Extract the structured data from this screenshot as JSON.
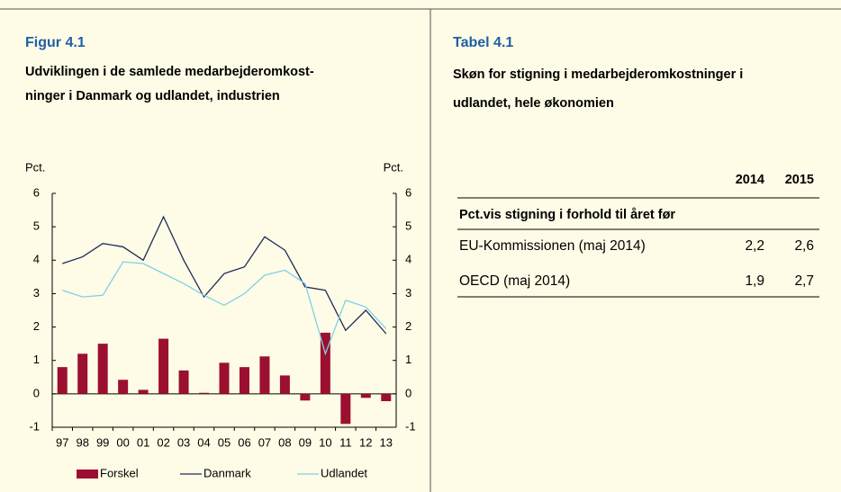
{
  "chart_data": {
    "type": "combo",
    "title": "Figur 4.1",
    "subtitle": [
      "Udviklingen i de samlede medarbejderomkost-",
      "ninger i Danmark og udlandet, industrien"
    ],
    "ylabel": "Pct.",
    "y2label": "Pct.",
    "categories": [
      "97",
      "98",
      "99",
      "00",
      "01",
      "02",
      "03",
      "04",
      "05",
      "06",
      "07",
      "08",
      "09",
      "10",
      "11",
      "12",
      "13"
    ],
    "series": [
      {
        "name": "Forskel",
        "type": "bar",
        "color": "#9b1030",
        "values": [
          0.8,
          1.2,
          1.5,
          0.42,
          0.12,
          1.65,
          0.7,
          0.03,
          0.93,
          0.8,
          1.12,
          0.55,
          -0.2,
          1.83,
          -0.9,
          -0.12,
          -0.22
        ]
      },
      {
        "name": "Danmark",
        "type": "line",
        "color": "#1f2a5a",
        "values": [
          3.9,
          4.1,
          4.5,
          4.4,
          4.0,
          5.3,
          4.0,
          2.9,
          3.6,
          3.8,
          4.7,
          4.3,
          3.2,
          3.1,
          1.9,
          2.5,
          1.8
        ]
      },
      {
        "name": "Udlandet",
        "type": "line",
        "color": "#7fd0e8",
        "values": [
          3.1,
          2.9,
          2.95,
          3.95,
          3.9,
          3.6,
          3.3,
          2.95,
          2.65,
          3.0,
          3.55,
          3.7,
          3.3,
          1.2,
          2.8,
          2.6,
          1.95
        ]
      }
    ],
    "ylim": [
      -1,
      6
    ],
    "yticks": [
      -1,
      0,
      1,
      2,
      3,
      4,
      5,
      6
    ],
    "y2lim": [
      -1,
      6
    ],
    "y2ticks": [
      -1,
      0,
      1,
      2,
      3,
      4,
      5,
      6
    ],
    "legend": "bottom"
  },
  "table": {
    "title": "Tabel 4.1",
    "subtitle": [
      "Skøn for stigning i medarbejderomkostninger i",
      "udlandet, hele økonomien"
    ],
    "columns": [
      "2014",
      "2015"
    ],
    "section": "Pct.vis stigning i forhold til året før",
    "rows": [
      [
        "EU-Kommissionen (maj 2014)",
        "2,2",
        "2,6"
      ],
      [
        "OECD (maj 2014)",
        "1,9",
        "2,7"
      ]
    ]
  }
}
